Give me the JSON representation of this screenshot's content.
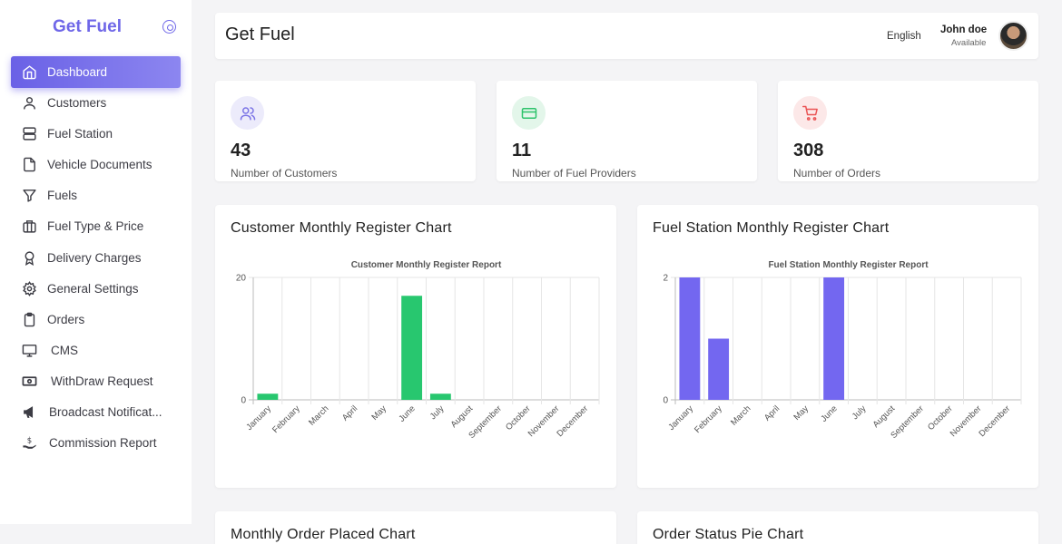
{
  "brand": {
    "name": "Get Fuel"
  },
  "sidebar": {
    "items": [
      {
        "label": "Dashboard",
        "icon": "home-icon",
        "active": true
      },
      {
        "label": "Customers",
        "icon": "user-icon"
      },
      {
        "label": "Fuel Station",
        "icon": "server-icon"
      },
      {
        "label": "Vehicle Documents",
        "icon": "file-icon"
      },
      {
        "label": "Fuels",
        "icon": "filter-icon"
      },
      {
        "label": "Fuel Type & Price",
        "icon": "briefcase-icon"
      },
      {
        "label": "Delivery Charges",
        "icon": "award-icon"
      },
      {
        "label": "General Settings",
        "icon": "gear-icon"
      },
      {
        "label": "Orders",
        "icon": "clipboard-icon"
      },
      {
        "label": "CMS",
        "icon": "monitor-icon"
      },
      {
        "label": "WithDraw Request",
        "icon": "money-icon"
      },
      {
        "label": "Broadcast Notificat...",
        "icon": "megaphone-icon"
      },
      {
        "label": "Commission Report",
        "icon": "hand-coin-icon"
      }
    ]
  },
  "header": {
    "title": "Get Fuel",
    "language": "English",
    "user_name": "John doe",
    "user_status": "Available"
  },
  "stats": [
    {
      "value": "43",
      "caption": "Number of Customers",
      "icon": "users-icon",
      "color": "#7b74e6",
      "bg": "#ecebfb"
    },
    {
      "value": "11",
      "caption": "Number of Fuel Providers",
      "icon": "credit-card-icon",
      "color": "#2cc36b",
      "bg": "#e3f6ea"
    },
    {
      "value": "308",
      "caption": "Number of Orders",
      "icon": "cart-icon",
      "color": "#ea5455",
      "bg": "#fce8e8"
    }
  ],
  "cards": {
    "customer_title": "Customer Monthly Register Chart",
    "station_title": "Fuel Station Monthly Register Chart",
    "orders_title": "Monthly Order Placed Chart",
    "status_title": "Order Status Pie Chart"
  },
  "chart_data": [
    {
      "type": "bar",
      "title": "Customer Monthly Register Report",
      "categories": [
        "January",
        "February",
        "March",
        "April",
        "May",
        "June",
        "July",
        "August",
        "September",
        "October",
        "November",
        "December"
      ],
      "values": [
        1,
        0,
        0,
        0,
        0,
        17,
        1,
        0,
        0,
        0,
        0,
        0
      ],
      "ylim": [
        0,
        20
      ],
      "yticks": [
        0,
        20
      ],
      "color": "#28c76f",
      "grid": true
    },
    {
      "type": "bar",
      "title": "Fuel Station Monthly Register Report",
      "categories": [
        "January",
        "February",
        "March",
        "April",
        "May",
        "June",
        "July",
        "August",
        "September",
        "October",
        "November",
        "December"
      ],
      "values": [
        2,
        1,
        0,
        0,
        0,
        2,
        0,
        0,
        0,
        0,
        0,
        0
      ],
      "ylim": [
        0,
        2
      ],
      "yticks": [
        0,
        2
      ],
      "color": "#7367f0",
      "grid": true
    }
  ]
}
